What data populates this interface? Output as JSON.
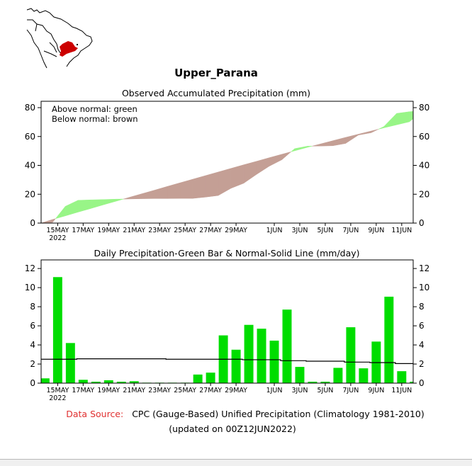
{
  "region_name": "Upper_Parana",
  "map": {
    "description": "South America outline with highlighted basin",
    "highlight_color": "#cc0000"
  },
  "footer": {
    "source_label": "Data Source:",
    "source_text": "CPC (Gauge-Based) Unified Precipitation (Climatology 1981-2010)",
    "updated_text": "(updated on 00Z12JUN2022)",
    "source_label_color": "#e03030"
  },
  "chart_data": [
    {
      "type": "area",
      "title": "Observed Accumulated Precipitation (mm)",
      "legend_lines": [
        "Above normal: green",
        "Below normal: brown"
      ],
      "legend_position": "top-left",
      "colors": {
        "above": "#98f587",
        "below": "#c49f95"
      },
      "xlabel": "",
      "ylabel": "",
      "ylim": [
        0,
        80
      ],
      "yticks": [
        0,
        20,
        40,
        60,
        80
      ],
      "x_dates": [
        "14MAY",
        "15MAY",
        "16MAY",
        "17MAY",
        "18MAY",
        "19MAY",
        "20MAY",
        "21MAY",
        "22MAY",
        "23MAY",
        "24MAY",
        "25MAY",
        "26MAY",
        "27MAY",
        "28MAY",
        "29MAY",
        "30MAY",
        "31MAY",
        "1JUN",
        "2JUN",
        "3JUN",
        "4JUN",
        "5JUN",
        "6JUN",
        "7JUN",
        "8JUN",
        "9JUN",
        "10JUN",
        "11JUN",
        "12JUN"
      ],
      "xtick_labels": [
        {
          "index": 1,
          "label": "15MAY",
          "sub": "2022"
        },
        {
          "index": 3,
          "label": "17MAY"
        },
        {
          "index": 5,
          "label": "19MAY"
        },
        {
          "index": 7,
          "label": "21MAY"
        },
        {
          "index": 9,
          "label": "23MAY"
        },
        {
          "index": 11,
          "label": "25MAY"
        },
        {
          "index": 13,
          "label": "27MAY"
        },
        {
          "index": 15,
          "label": "29MAY"
        },
        {
          "index": 18,
          "label": "1JUN"
        },
        {
          "index": 20,
          "label": "3JUN"
        },
        {
          "index": 22,
          "label": "5JUN"
        },
        {
          "index": 24,
          "label": "7JUN"
        },
        {
          "index": 26,
          "label": "9JUN"
        },
        {
          "index": 28,
          "label": "11JUN"
        }
      ],
      "series": [
        {
          "name": "Observed accumulated",
          "values": [
            0.5,
            11.6,
            15.8,
            16.1,
            16.3,
            16.6,
            16.7,
            16.9,
            17.0,
            17.0,
            17.1,
            17.1,
            18.0,
            19.1,
            24.1,
            27.6,
            33.7,
            39.4,
            43.9,
            51.6,
            53.3,
            53.4,
            53.6,
            55.2,
            61.0,
            62.6,
            66.9,
            76.0,
            77.2,
            77.4
          ]
        },
        {
          "name": "Normal accumulated",
          "values": [
            2.5,
            5.0,
            7.6,
            10.1,
            12.7,
            15.2,
            17.8,
            20.3,
            22.8,
            25.4,
            27.9,
            30.4,
            32.9,
            35.4,
            37.9,
            40.4,
            42.8,
            45.3,
            47.7,
            50.1,
            52.5,
            54.8,
            57.1,
            59.4,
            61.6,
            63.8,
            66.0,
            68.1,
            70.2,
            72.3
          ]
        }
      ]
    },
    {
      "type": "bar",
      "title": "Daily Precipitation-Green Bar & Normal-Solid Line (mm/day)",
      "colors": {
        "bar": "#00dd00",
        "normal_line": "#000000"
      },
      "xlabel": "",
      "ylabel": "",
      "ylim": [
        0,
        12.9
      ],
      "yticks": [
        0,
        2,
        4,
        6,
        8,
        10,
        12
      ],
      "x_dates": [
        "14MAY",
        "15MAY",
        "16MAY",
        "17MAY",
        "18MAY",
        "19MAY",
        "20MAY",
        "21MAY",
        "22MAY",
        "23MAY",
        "24MAY",
        "25MAY",
        "26MAY",
        "27MAY",
        "28MAY",
        "29MAY",
        "30MAY",
        "31MAY",
        "1JUN",
        "2JUN",
        "3JUN",
        "4JUN",
        "5JUN",
        "6JUN",
        "7JUN",
        "8JUN",
        "9JUN",
        "10JUN",
        "11JUN",
        "12JUN"
      ],
      "xtick_labels": [
        {
          "index": 1,
          "label": "15MAY",
          "sub": "2022"
        },
        {
          "index": 3,
          "label": "17MAY"
        },
        {
          "index": 5,
          "label": "19MAY"
        },
        {
          "index": 7,
          "label": "21MAY"
        },
        {
          "index": 9,
          "label": "23MAY"
        },
        {
          "index": 11,
          "label": "25MAY"
        },
        {
          "index": 13,
          "label": "27MAY"
        },
        {
          "index": 15,
          "label": "29MAY"
        },
        {
          "index": 18,
          "label": "1JUN"
        },
        {
          "index": 20,
          "label": "3JUN"
        },
        {
          "index": 22,
          "label": "5JUN"
        },
        {
          "index": 24,
          "label": "7JUN"
        },
        {
          "index": 26,
          "label": "9JUN"
        },
        {
          "index": 28,
          "label": "11JUN"
        }
      ],
      "series": [
        {
          "name": "Daily precipitation",
          "values": [
            0.5,
            11.1,
            4.2,
            0.35,
            0.15,
            0.3,
            0.15,
            0.2,
            0.05,
            0.05,
            0.05,
            0.05,
            0.9,
            1.1,
            5.0,
            3.5,
            6.1,
            5.7,
            4.45,
            7.7,
            1.7,
            0.15,
            0.15,
            1.6,
            5.85,
            1.55,
            4.35,
            9.05,
            1.25,
            0.15
          ]
        },
        {
          "name": "Normal",
          "values": [
            2.5,
            2.5,
            2.5,
            2.55,
            2.55,
            2.55,
            2.55,
            2.55,
            2.55,
            2.55,
            2.5,
            2.5,
            2.5,
            2.5,
            2.5,
            2.5,
            2.45,
            2.45,
            2.45,
            2.35,
            2.35,
            2.3,
            2.3,
            2.3,
            2.2,
            2.2,
            2.15,
            2.15,
            2.05,
            2.05
          ]
        }
      ]
    }
  ]
}
